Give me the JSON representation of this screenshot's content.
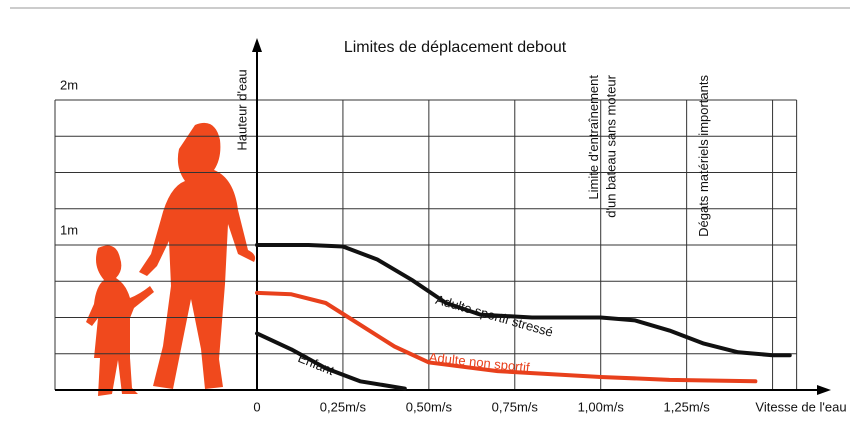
{
  "chart_data": {
    "type": "line",
    "title": "Limites de déplacement debout",
    "xlabel": "Vitesse de l'eau",
    "ylabel": "Hauteur d'eau",
    "xlim": [
      0,
      1.67
    ],
    "ylim": [
      0,
      2
    ],
    "xticks": [
      0,
      {
        "value": 0.25,
        "label": "0,25m/s"
      },
      {
        "value": 0.5,
        "label": "0,50m/s"
      },
      {
        "value": 0.75,
        "label": "0,75m/s"
      },
      {
        "value": 1,
        "label": "1,00m/s"
      },
      {
        "value": 1.25,
        "label": "1,25m/s"
      }
    ],
    "yticks": [
      {
        "value": 1,
        "label": "1m"
      },
      {
        "value": 2,
        "label": "2m"
      }
    ],
    "xgrid": [
      0.25,
      0.5,
      0.75,
      1,
      1.25,
      1.5,
      1.57
    ],
    "ygrid": [
      0.25,
      0.5,
      0.75,
      1,
      1.25,
      1.5,
      1.75,
      2
    ],
    "annotations": [
      {
        "text": "Limite d'entraînement",
        "x": 1.0
      },
      {
        "text": "d'un bateau sans moteur",
        "x": 1.05
      },
      {
        "text": "Dégats matériels importants",
        "x": 1.32
      }
    ],
    "series": [
      {
        "name": "Adulte sportif stressé",
        "color": "#111111",
        "x": [
          0,
          0.15,
          0.25,
          0.35,
          0.45,
          0.55,
          0.65,
          0.8,
          1.0,
          1.1,
          1.2,
          1.3,
          1.4,
          1.5,
          1.55
        ],
        "values": [
          1.0,
          1.0,
          0.99,
          0.9,
          0.76,
          0.6,
          0.52,
          0.5,
          0.5,
          0.48,
          0.41,
          0.32,
          0.26,
          0.24,
          0.24
        ]
      },
      {
        "name": "Adulte non sportif",
        "color": "#e8401c",
        "x": [
          0,
          0.1,
          0.2,
          0.3,
          0.4,
          0.5,
          0.7,
          1.0,
          1.2,
          1.45
        ],
        "values": [
          0.67,
          0.66,
          0.6,
          0.45,
          0.3,
          0.19,
          0.13,
          0.09,
          0.07,
          0.06
        ]
      },
      {
        "name": "Enfant",
        "color": "#111111",
        "x": [
          0,
          0.1,
          0.2,
          0.3,
          0.43
        ],
        "values": [
          0.39,
          0.28,
          0.15,
          0.06,
          0.01
        ]
      }
    ]
  }
}
